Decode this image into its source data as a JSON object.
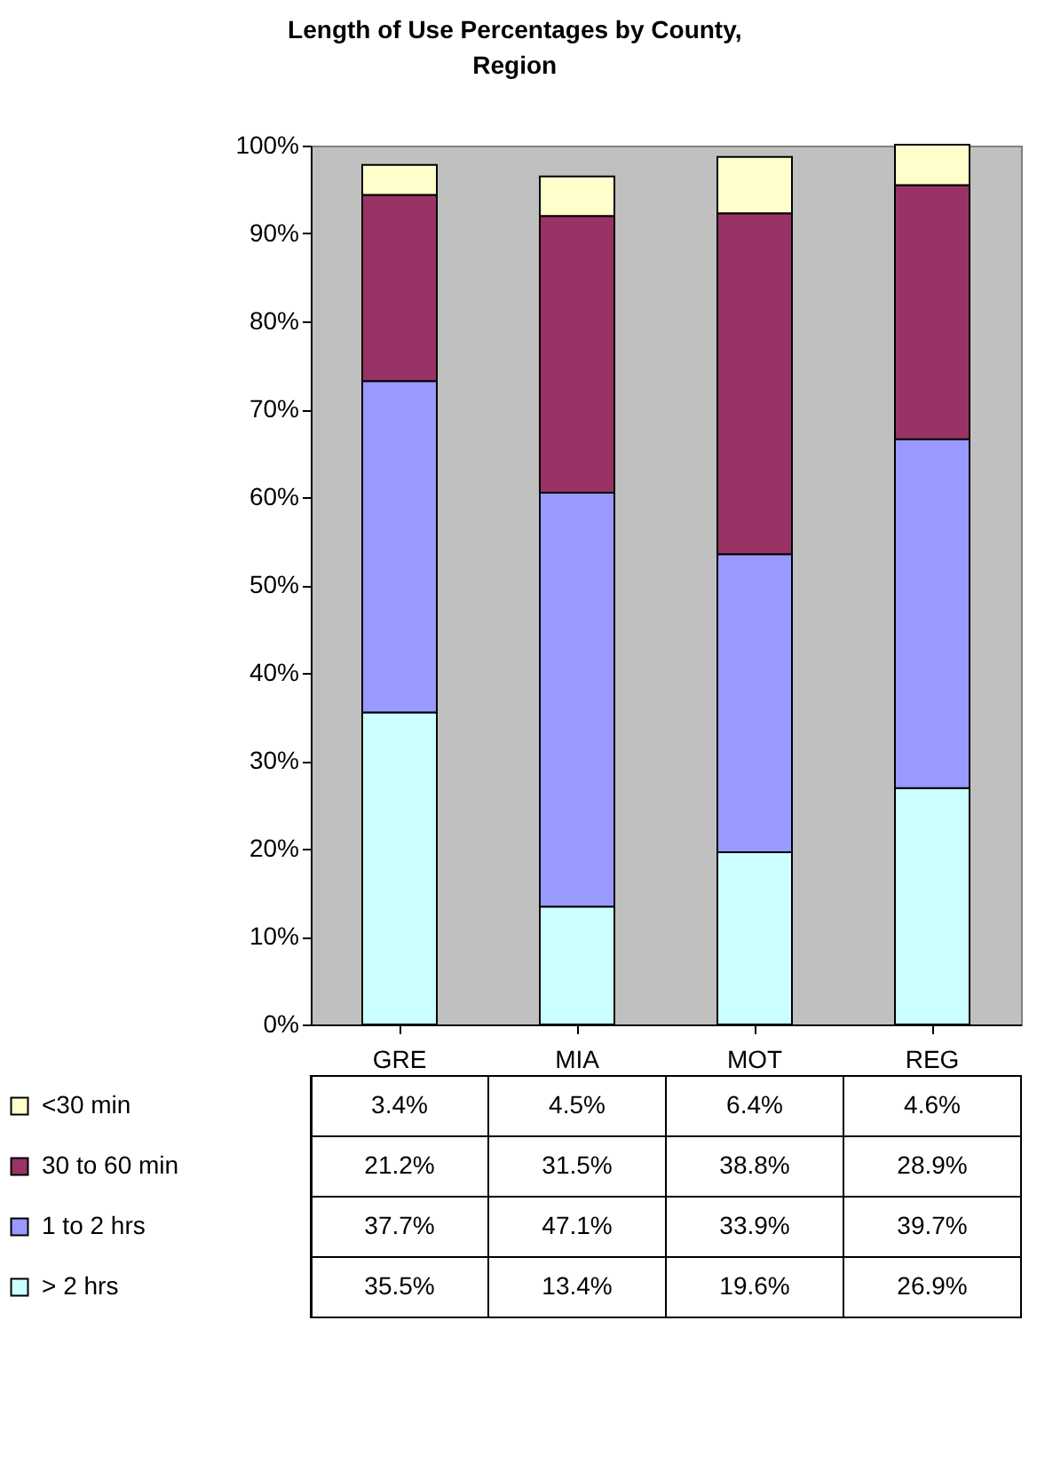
{
  "chart_data": {
    "type": "bar",
    "title": "Length of Use Percentages by County, Region",
    "categories": [
      "GRE",
      "MIA",
      "MOT",
      "REG"
    ],
    "stacked": true,
    "series": [
      {
        "name": "> 2 hrs",
        "color": "#ccffff",
        "values": [
          35.5,
          13.4,
          19.6,
          26.9
        ],
        "value_labels": [
          "35.5%",
          "13.4%",
          "19.6%",
          "26.9%"
        ]
      },
      {
        "name": "1 to 2 hrs",
        "color": "#9999ff",
        "values": [
          37.7,
          47.1,
          33.9,
          39.7
        ],
        "value_labels": [
          "37.7%",
          "47.1%",
          "33.9%",
          "39.7%"
        ]
      },
      {
        "name": "30 to 60 min",
        "color": "#993366",
        "values": [
          21.2,
          31.5,
          38.8,
          28.9
        ],
        "value_labels": [
          "21.2%",
          "31.5%",
          "38.8%",
          "28.9%"
        ]
      },
      {
        "name": "<30 min",
        "color": "#ffffcc",
        "values": [
          3.4,
          4.5,
          6.4,
          4.6
        ],
        "value_labels": [
          "3.4%",
          "4.5%",
          "6.4%",
          "4.6%"
        ]
      }
    ],
    "ylim": [
      0,
      100
    ],
    "yticks": [
      {
        "value": 0,
        "label": "0%"
      },
      {
        "value": 10,
        "label": "10%"
      },
      {
        "value": 20,
        "label": "20%"
      },
      {
        "value": 30,
        "label": "30%"
      },
      {
        "value": 40,
        "label": "40%"
      },
      {
        "value": 50,
        "label": "50%"
      },
      {
        "value": 60,
        "label": "60%"
      },
      {
        "value": 70,
        "label": "70%"
      },
      {
        "value": 80,
        "label": "80%"
      },
      {
        "value": 90,
        "label": "90%"
      },
      {
        "value": 100,
        "label": "100%"
      }
    ],
    "grid": false,
    "legend": "bottom"
  }
}
